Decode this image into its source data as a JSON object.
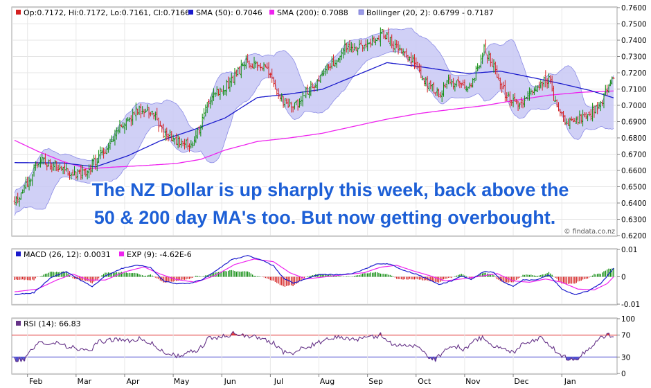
{
  "colors": {
    "bull_candle": "#0a8a0a",
    "bear_candle": "#d42020",
    "sma50": "#1a1acc",
    "sma200": "#ee22ee",
    "bollinger_fill": "#c8c8f4",
    "bollinger_edge": "#8c8ce6",
    "macd": "#1a1acc",
    "exp": "#ee22ee",
    "hist_pos": "#0a8a0a",
    "hist_neg": "#d42020",
    "rsi": "#663388",
    "rsi_ob": "#e03030",
    "rsi_os": "#5050d0",
    "headline": "#1d5fd6"
  },
  "annotation": {
    "line1": "The NZ Dollar is up sharply this week, back above the",
    "line2": "50 & 200 day MA's too. But now getting overbought."
  },
  "watermark": "© findata.co.nz",
  "chart_data": [
    {
      "type": "candlestick",
      "panel": "price",
      "legend": [
        {
          "label": "Op:0.7172, Hi:0.7172, Lo:0.7161, Cl:0.7166",
          "color": "#d42020"
        },
        {
          "label": "SMA (50): 0.7046",
          "color": "#1a1acc"
        },
        {
          "label": "SMA (200): 0.7088",
          "color": "#ee22ee"
        },
        {
          "label": "Bollinger (20, 2): 0.6799 - 0.7187",
          "color": "#9a9ae8"
        }
      ],
      "ylim": [
        0.62,
        0.76
      ],
      "yticks": [
        "0.7600",
        "0.7500",
        "0.7400",
        "0.7300",
        "0.7200",
        "0.7100",
        "0.7000",
        "0.6900",
        "0.6800",
        "0.6700",
        "0.6600",
        "0.6500",
        "0.6400",
        "0.6300",
        "0.6200"
      ],
      "months": [
        "Feb",
        "Mar",
        "Apr",
        "May",
        "Jun",
        "Jul",
        "Aug",
        "Sep",
        "Oct",
        "Nov",
        "Dec",
        "Jan"
      ],
      "close_anchors": [
        [
          0,
          0.64
        ],
        [
          8,
          0.652
        ],
        [
          16,
          0.667
        ],
        [
          22,
          0.664
        ],
        [
          30,
          0.662
        ],
        [
          38,
          0.657
        ],
        [
          44,
          0.658
        ],
        [
          50,
          0.666
        ],
        [
          56,
          0.673
        ],
        [
          62,
          0.683
        ],
        [
          70,
          0.69
        ],
        [
          76,
          0.697
        ],
        [
          82,
          0.696
        ],
        [
          86,
          0.694
        ],
        [
          92,
          0.683
        ],
        [
          98,
          0.68
        ],
        [
          104,
          0.675
        ],
        [
          110,
          0.677
        ],
        [
          114,
          0.686
        ],
        [
          120,
          0.703
        ],
        [
          126,
          0.708
        ],
        [
          132,
          0.713
        ],
        [
          138,
          0.72
        ],
        [
          144,
          0.727
        ],
        [
          150,
          0.723
        ],
        [
          156,
          0.724
        ],
        [
          160,
          0.712
        ],
        [
          166,
          0.703
        ],
        [
          172,
          0.698
        ],
        [
          180,
          0.708
        ],
        [
          188,
          0.717
        ],
        [
          196,
          0.726
        ],
        [
          204,
          0.735
        ],
        [
          212,
          0.736
        ],
        [
          218,
          0.739
        ],
        [
          224,
          0.741
        ],
        [
          228,
          0.745
        ],
        [
          234,
          0.737
        ],
        [
          240,
          0.733
        ],
        [
          246,
          0.728
        ],
        [
          250,
          0.72
        ],
        [
          256,
          0.712
        ],
        [
          262,
          0.707
        ],
        [
          268,
          0.714
        ],
        [
          274,
          0.713
        ],
        [
          280,
          0.708
        ],
        [
          286,
          0.723
        ],
        [
          290,
          0.734
        ],
        [
          296,
          0.724
        ],
        [
          300,
          0.712
        ],
        [
          306,
          0.703
        ],
        [
          312,
          0.7
        ],
        [
          318,
          0.709
        ],
        [
          324,
          0.713
        ],
        [
          330,
          0.716
        ],
        [
          334,
          0.702
        ],
        [
          338,
          0.693
        ],
        [
          344,
          0.689
        ],
        [
          350,
          0.693
        ],
        [
          356,
          0.695
        ],
        [
          362,
          0.701
        ],
        [
          366,
          0.711
        ],
        [
          370,
          0.717
        ]
      ],
      "sma50_anchors": [
        [
          0,
          0.6648
        ],
        [
          30,
          0.6646
        ],
        [
          50,
          0.6622
        ],
        [
          70,
          0.669
        ],
        [
          90,
          0.6782
        ],
        [
          110,
          0.6848
        ],
        [
          130,
          0.6922
        ],
        [
          150,
          0.7048
        ],
        [
          170,
          0.707
        ],
        [
          190,
          0.7098
        ],
        [
          210,
          0.718
        ],
        [
          230,
          0.7262
        ],
        [
          250,
          0.7238
        ],
        [
          262,
          0.722
        ],
        [
          280,
          0.7195
        ],
        [
          300,
          0.721
        ],
        [
          320,
          0.717
        ],
        [
          338,
          0.7132
        ],
        [
          356,
          0.709
        ],
        [
          370,
          0.7046
        ]
      ],
      "sma200_anchors": [
        [
          0,
          0.6785
        ],
        [
          15,
          0.6715
        ],
        [
          30,
          0.6655
        ],
        [
          45,
          0.661
        ],
        [
          60,
          0.662
        ],
        [
          80,
          0.663
        ],
        [
          100,
          0.6643
        ],
        [
          115,
          0.6668
        ],
        [
          130,
          0.6725
        ],
        [
          150,
          0.6778
        ],
        [
          170,
          0.68
        ],
        [
          190,
          0.6828
        ],
        [
          210,
          0.6872
        ],
        [
          230,
          0.6915
        ],
        [
          250,
          0.695
        ],
        [
          270,
          0.6975
        ],
        [
          290,
          0.6998
        ],
        [
          310,
          0.7032
        ],
        [
          330,
          0.7062
        ],
        [
          350,
          0.708
        ],
        [
          370,
          0.7088
        ]
      ]
    },
    {
      "type": "line",
      "panel": "macd",
      "legend": [
        {
          "label": "MACD (26, 12): 0.0031",
          "color": "#1a1acc"
        },
        {
          "label": "EXP (9): -4.62E-6",
          "color": "#ee22ee"
        }
      ],
      "ylim": [
        -0.01,
        0.01
      ],
      "yticks": [
        "0.01",
        "0",
        "-0.01"
      ],
      "macd_anchors": [
        [
          0,
          -0.0065
        ],
        [
          12,
          -0.0058
        ],
        [
          22,
          -0.0005
        ],
        [
          32,
          0.002
        ],
        [
          40,
          -0.001
        ],
        [
          48,
          -0.0035
        ],
        [
          56,
          0.0002
        ],
        [
          66,
          0.003
        ],
        [
          76,
          0.0043
        ],
        [
          84,
          0.0033
        ],
        [
          92,
          -0.0015
        ],
        [
          100,
          -0.0025
        ],
        [
          108,
          -0.0025
        ],
        [
          116,
          -0.001
        ],
        [
          124,
          0.002
        ],
        [
          134,
          0.0062
        ],
        [
          144,
          0.0077
        ],
        [
          152,
          0.0063
        ],
        [
          160,
          0.004
        ],
        [
          166,
          -0.0005
        ],
        [
          172,
          -0.0023
        ],
        [
          180,
          -0.0008
        ],
        [
          188,
          0.0008
        ],
        [
          198,
          0.0008
        ],
        [
          208,
          0.001
        ],
        [
          216,
          0.0028
        ],
        [
          224,
          0.0048
        ],
        [
          232,
          0.0047
        ],
        [
          240,
          0.0024
        ],
        [
          248,
          0.001
        ],
        [
          256,
          -0.001
        ],
        [
          262,
          -0.0028
        ],
        [
          270,
          -0.0015
        ],
        [
          276,
          0.0003
        ],
        [
          282,
          -0.001
        ],
        [
          290,
          0.002
        ],
        [
          296,
          0.0015
        ],
        [
          302,
          -0.002
        ],
        [
          308,
          -0.0035
        ],
        [
          314,
          -0.0012
        ],
        [
          322,
          -0.0012
        ],
        [
          330,
          0.0008
        ],
        [
          338,
          -0.0045
        ],
        [
          346,
          -0.0065
        ],
        [
          354,
          -0.0052
        ],
        [
          362,
          -0.0025
        ],
        [
          370,
          0.0031
        ]
      ],
      "exp_anchors": [
        [
          0,
          -0.0055
        ],
        [
          14,
          -0.0045
        ],
        [
          26,
          -0.0012
        ],
        [
          36,
          0.001
        ],
        [
          46,
          -0.0012
        ],
        [
          56,
          -0.0012
        ],
        [
          68,
          0.0018
        ],
        [
          80,
          0.0036
        ],
        [
          90,
          0.001
        ],
        [
          100,
          -0.001
        ],
        [
          112,
          -0.002
        ],
        [
          124,
          0.0005
        ],
        [
          136,
          0.0045
        ],
        [
          148,
          0.0065
        ],
        [
          160,
          0.0055
        ],
        [
          170,
          0.0015
        ],
        [
          180,
          -0.0008
        ],
        [
          192,
          0.0
        ],
        [
          204,
          0.0008
        ],
        [
          216,
          0.0015
        ],
        [
          226,
          0.0035
        ],
        [
          236,
          0.0042
        ],
        [
          246,
          0.0022
        ],
        [
          256,
          0.0005
        ],
        [
          266,
          -0.0015
        ],
        [
          276,
          -0.0008
        ],
        [
          288,
          0.0002
        ],
        [
          298,
          0.0012
        ],
        [
          308,
          -0.0015
        ],
        [
          318,
          -0.002
        ],
        [
          328,
          -0.0008
        ],
        [
          338,
          -0.002
        ],
        [
          348,
          -0.0045
        ],
        [
          358,
          -0.0048
        ],
        [
          366,
          -0.0025
        ],
        [
          370,
          0.0
        ]
      ]
    },
    {
      "type": "line",
      "panel": "rsi",
      "legend": [
        {
          "label": "RSI (14): 66.83",
          "color": "#663388"
        }
      ],
      "ylim": [
        0,
        100
      ],
      "yticks": [
        "100",
        "70",
        "30",
        "0"
      ],
      "overbought": 70,
      "oversold": 30,
      "rsi_anchors": [
        [
          0,
          26
        ],
        [
          6,
          24
        ],
        [
          10,
          40
        ],
        [
          16,
          58
        ],
        [
          22,
          56
        ],
        [
          28,
          56
        ],
        [
          34,
          48
        ],
        [
          40,
          44
        ],
        [
          46,
          40
        ],
        [
          52,
          57
        ],
        [
          60,
          62
        ],
        [
          66,
          63
        ],
        [
          72,
          57
        ],
        [
          78,
          65
        ],
        [
          84,
          56
        ],
        [
          90,
          42
        ],
        [
          96,
          36
        ],
        [
          102,
          30
        ],
        [
          108,
          38
        ],
        [
          114,
          44
        ],
        [
          120,
          64
        ],
        [
          128,
          66
        ],
        [
          132,
          70
        ],
        [
          136,
          74
        ],
        [
          142,
          68
        ],
        [
          148,
          67
        ],
        [
          154,
          63
        ],
        [
          160,
          56
        ],
        [
          166,
          40
        ],
        [
          172,
          36
        ],
        [
          178,
          46
        ],
        [
          186,
          54
        ],
        [
          194,
          62
        ],
        [
          200,
          67
        ],
        [
          206,
          64
        ],
        [
          212,
          62
        ],
        [
          220,
          66
        ],
        [
          226,
          70
        ],
        [
          232,
          56
        ],
        [
          238,
          52
        ],
        [
          246,
          50
        ],
        [
          252,
          44
        ],
        [
          256,
          30
        ],
        [
          260,
          26
        ],
        [
          266,
          44
        ],
        [
          272,
          50
        ],
        [
          278,
          44
        ],
        [
          284,
          60
        ],
        [
          290,
          66
        ],
        [
          296,
          50
        ],
        [
          302,
          44
        ],
        [
          308,
          38
        ],
        [
          314,
          56
        ],
        [
          320,
          60
        ],
        [
          326,
          66
        ],
        [
          332,
          48
        ],
        [
          336,
          34
        ],
        [
          342,
          28
        ],
        [
          348,
          28
        ],
        [
          354,
          44
        ],
        [
          360,
          60
        ],
        [
          366,
          72
        ],
        [
          370,
          67
        ]
      ]
    }
  ]
}
